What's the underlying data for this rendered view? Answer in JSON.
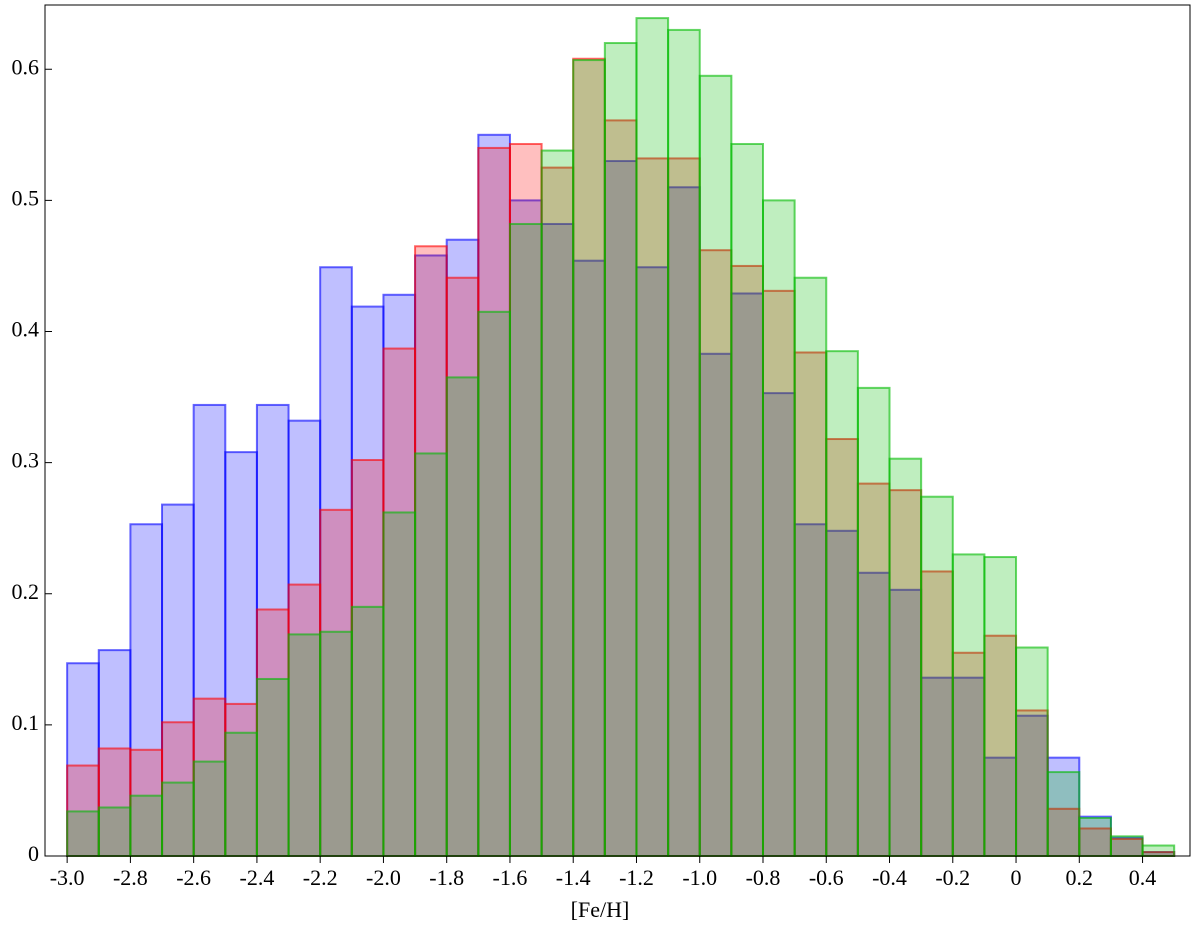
{
  "chart_data": {
    "type": "histogram",
    "x_label": "[Fe/H]",
    "bins": [
      -3.0,
      -2.9,
      -2.8,
      -2.7,
      -2.6,
      -2.5,
      -2.4,
      -2.3,
      -2.2,
      -2.1,
      -2.0,
      -1.9,
      -1.8,
      -1.7,
      -1.6,
      -1.5,
      -1.4,
      -1.3,
      -1.2,
      -1.1,
      -1.0,
      -0.9,
      -0.8,
      -0.7,
      -0.6,
      -0.5,
      -0.4,
      -0.3,
      -0.2,
      -0.1,
      0.0,
      0.1,
      0.2,
      0.3,
      0.4,
      0.5
    ],
    "series": [
      {
        "color": "#0000ff",
        "values": [
          0.147,
          0.157,
          0.253,
          0.268,
          0.344,
          0.308,
          0.344,
          0.332,
          0.449,
          0.419,
          0.428,
          0.458,
          0.47,
          0.55,
          0.5,
          0.482,
          0.454,
          0.53,
          0.449,
          0.51,
          0.383,
          0.429,
          0.353,
          0.253,
          0.248,
          0.216,
          0.203,
          0.136,
          0.136,
          0.075,
          0.107,
          0.075,
          0.03,
          0.014,
          0.003
        ]
      },
      {
        "color": "#ff0000",
        "values": [
          0.069,
          0.082,
          0.081,
          0.102,
          0.12,
          0.116,
          0.188,
          0.207,
          0.264,
          0.302,
          0.387,
          0.465,
          0.441,
          0.54,
          0.543,
          0.525,
          0.608,
          0.561,
          0.532,
          0.532,
          0.462,
          0.45,
          0.431,
          0.384,
          0.318,
          0.284,
          0.279,
          0.217,
          0.155,
          0.168,
          0.111,
          0.036,
          0.021,
          0.013,
          0.003
        ]
      },
      {
        "color": "#00bb00",
        "values": [
          0.034,
          0.037,
          0.046,
          0.056,
          0.072,
          0.094,
          0.135,
          0.169,
          0.171,
          0.19,
          0.262,
          0.307,
          0.365,
          0.415,
          0.482,
          0.538,
          0.607,
          0.62,
          0.639,
          0.63,
          0.595,
          0.543,
          0.5,
          0.441,
          0.385,
          0.357,
          0.303,
          0.274,
          0.23,
          0.228,
          0.159,
          0.064,
          0.029,
          0.015,
          0.008
        ]
      }
    ],
    "xlim": [
      -3.07,
      0.55
    ],
    "ylim": [
      0,
      0.649
    ],
    "xticks": [
      {
        "value": -3.0,
        "label": "-3.0"
      },
      -2.8,
      -2.6,
      -2.4,
      -2.2,
      {
        "value": -2.0,
        "label": "-2.0"
      },
      -1.8,
      -1.6,
      -1.4,
      -1.2,
      {
        "value": -1.0,
        "label": "-1.0"
      },
      -0.8,
      -0.6,
      -0.4,
      -0.2,
      0,
      0.2,
      0.4
    ],
    "yticks": [
      0,
      0.1,
      0.2,
      0.3,
      0.4,
      0.5,
      0.6
    ]
  }
}
